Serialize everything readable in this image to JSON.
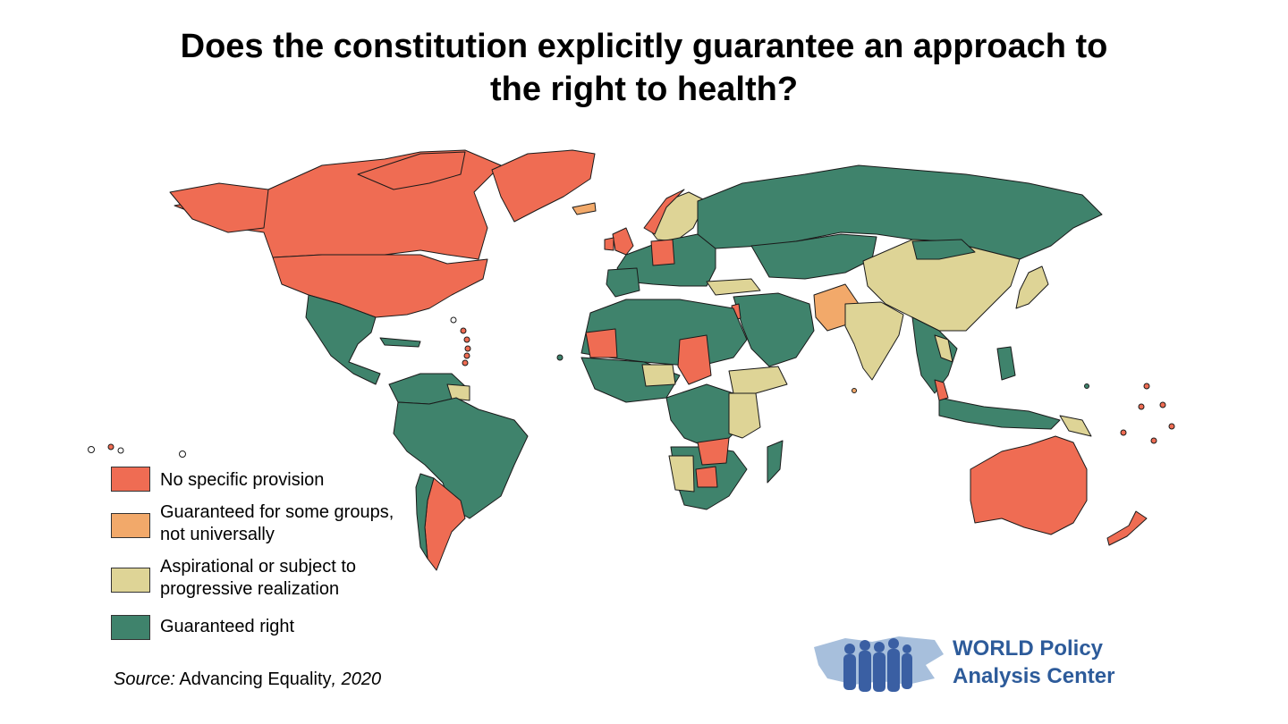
{
  "title": {
    "line1": "Does the constitution explicitly guarantee an approach to",
    "line2": "the right to health?"
  },
  "colors": {
    "no_provision": "#ef6c53",
    "some_groups": "#f2a96a",
    "aspirational": "#ded496",
    "guaranteed": "#3f836c",
    "border": "#1a1a1a"
  },
  "legend": [
    {
      "label_lines": [
        "No specific provision"
      ],
      "color": "#ef6c53"
    },
    {
      "label_lines": [
        "Guaranteed for some groups,",
        "not universally"
      ],
      "color": "#f2a96a"
    },
    {
      "label_lines": [
        "Aspirational or subject to",
        "progressive realization"
      ],
      "color": "#ded496"
    },
    {
      "label_lines": [
        "Guaranteed right"
      ],
      "color": "#3f836c"
    }
  ],
  "source": {
    "prefix": "Source:",
    "text": " Advancing Equality",
    "suffix": ", 2020"
  },
  "logo": {
    "line1": "WORLD Policy",
    "line2": "Analysis Center",
    "icon": "people-world-map-icon"
  }
}
